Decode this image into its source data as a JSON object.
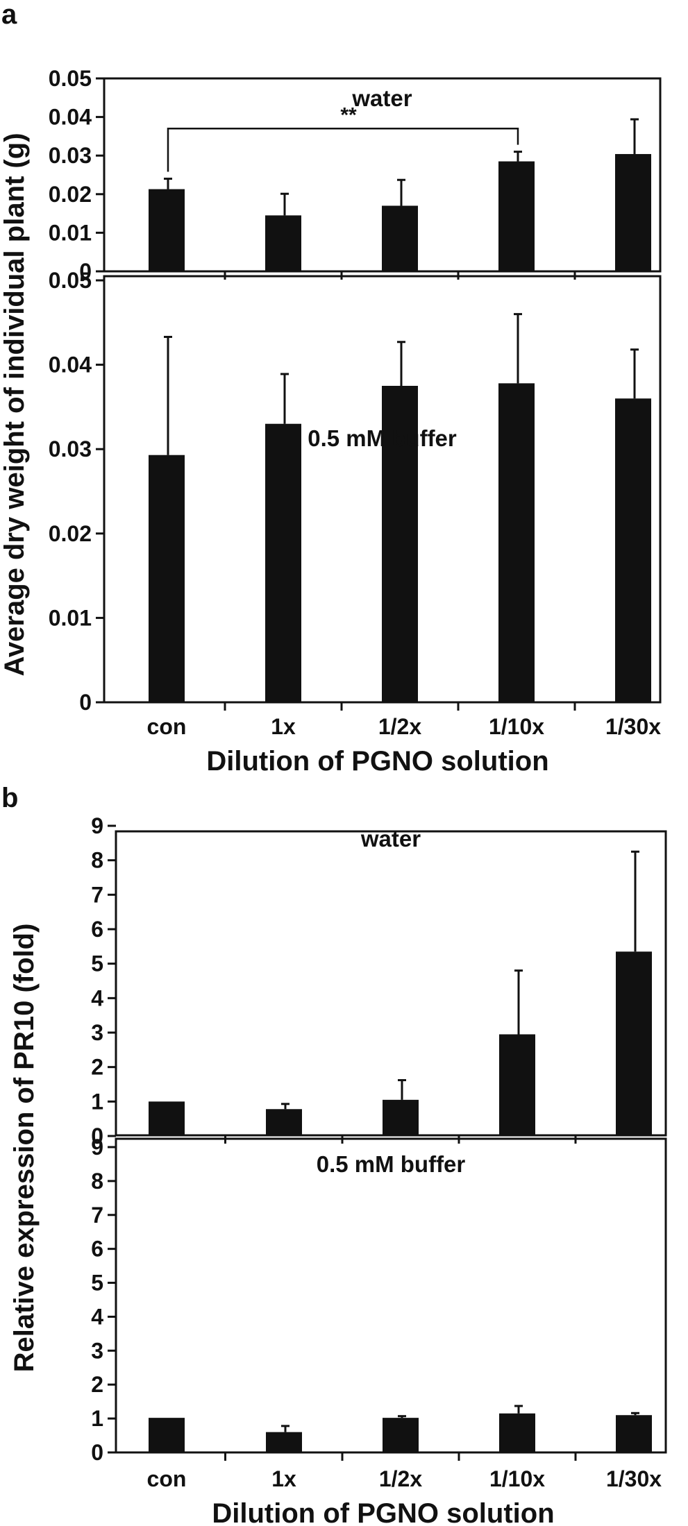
{
  "figure": {
    "xlabel": "Dilution of PGNO solution",
    "categories": [
      "con",
      "1x",
      "1/2x",
      "1/10x",
      "1/30x"
    ]
  },
  "panels": [
    {
      "letter": "a",
      "ylabel": "Average dry weight of individual  plant (g)",
      "xlabel": "Dilution of PGNO solution"
    },
    {
      "letter": "b",
      "ylabel": "Relative expression of PR10 (fold)",
      "xlabel": "Dilution of PGNO solution"
    }
  ],
  "chart_data": [
    {
      "type": "bar",
      "panel": "a",
      "title": "water",
      "categories": [
        "con",
        "1x",
        "1/2x",
        "1/10x",
        "1/30x"
      ],
      "values": [
        0.0213,
        0.0145,
        0.017,
        0.0285,
        0.0304
      ],
      "errors": [
        0.0027,
        0.0056,
        0.0067,
        0.0025,
        0.009
      ],
      "ylim": [
        0,
        0.05
      ],
      "yticks": [
        0,
        0.01,
        0.02,
        0.03,
        0.04,
        0.05
      ],
      "ytick_labels": [
        "0",
        "0.01",
        "0.02",
        "0.03",
        "0.04",
        "0.05"
      ],
      "significance": {
        "from": "con",
        "to": "1/10x",
        "label": "**",
        "level": 0.037
      }
    },
    {
      "type": "bar",
      "panel": "a",
      "title": "0.5 mM buffer",
      "categories": [
        "con",
        "1x",
        "1/2x",
        "1/10x",
        "1/30x"
      ],
      "values": [
        0.0293,
        0.033,
        0.0375,
        0.0378,
        0.036
      ],
      "errors": [
        0.014,
        0.0059,
        0.0052,
        0.0082,
        0.0058
      ],
      "ylim": [
        0,
        0.05
      ],
      "yticks": [
        0,
        0.01,
        0.02,
        0.03,
        0.04,
        0.05
      ],
      "ytick_labels": [
        "0",
        "0.01",
        "0.02",
        "0.03",
        "0.04",
        "0.05"
      ]
    },
    {
      "type": "bar",
      "panel": "b",
      "title": "water",
      "categories": [
        "con",
        "1x",
        "1/2x",
        "1/10x",
        "1/30x"
      ],
      "values": [
        1.0,
        0.78,
        1.05,
        2.95,
        5.35
      ],
      "errors": [
        0.0,
        0.15,
        0.57,
        1.85,
        2.9
      ],
      "ylim": [
        0,
        9
      ],
      "yticks": [
        0,
        1,
        2,
        3,
        4,
        5,
        6,
        7,
        8,
        9
      ],
      "ytick_labels": [
        "0",
        "1",
        "2",
        "3",
        "4",
        "5",
        "6",
        "7",
        "8",
        "9"
      ]
    },
    {
      "type": "bar",
      "panel": "b",
      "title": "0.5 mM buffer",
      "categories": [
        "con",
        "1x",
        "1/2x",
        "1/10x",
        "1/30x"
      ],
      "values": [
        1.02,
        0.6,
        1.02,
        1.15,
        1.1
      ],
      "errors": [
        0.0,
        0.18,
        0.05,
        0.22,
        0.06
      ],
      "ylim": [
        0,
        9
      ],
      "yticks": [
        0,
        1,
        2,
        3,
        4,
        5,
        6,
        7,
        8,
        9
      ],
      "ytick_labels": [
        "0",
        "1",
        "2",
        "3",
        "4",
        "5",
        "6",
        "7",
        "8",
        "9"
      ]
    }
  ]
}
